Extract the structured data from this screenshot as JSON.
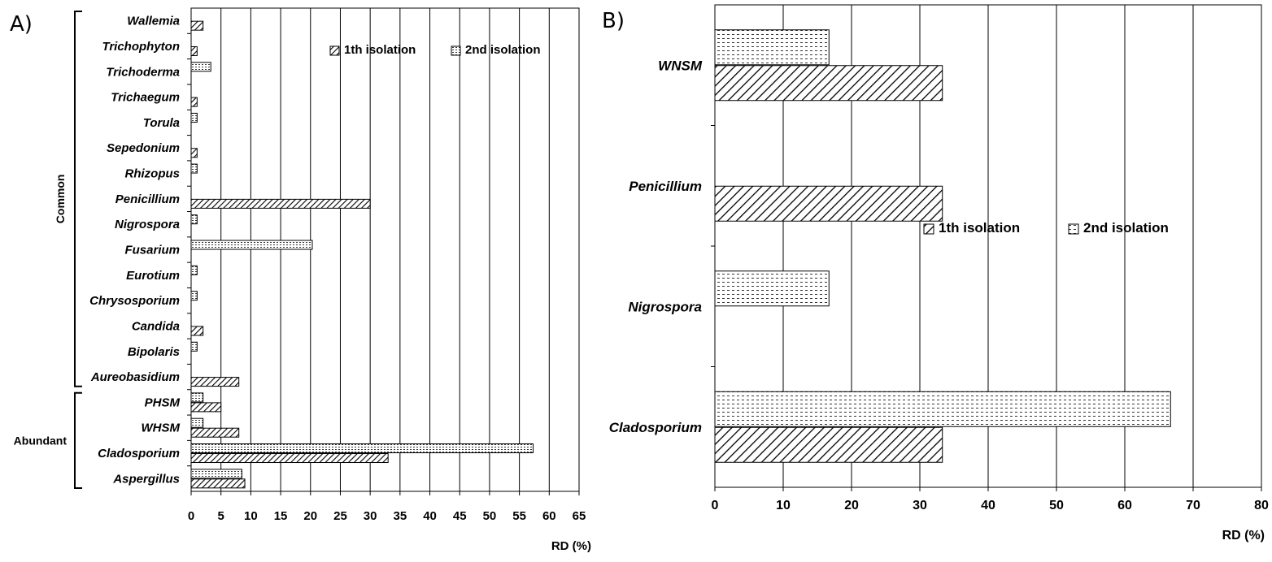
{
  "chart_data": [
    {
      "panel": "A)",
      "type": "bar",
      "orientation": "horizontal",
      "categories": [
        "Wallemia",
        "Trichophyton",
        "Trichoderma",
        "Trichaegum",
        "Torula",
        "Sepedonium",
        "Rhizopus",
        "Penicillium",
        "Nigrospora",
        "Fusarium",
        "Eurotium",
        "Chrysosporium",
        "Candida",
        "Bipolaris",
        "Aureobasidium",
        "PHSM",
        "WHSM",
        "Cladosporium",
        "Aspergillus"
      ],
      "series": [
        {
          "name": "1th isolation",
          "pattern": "diagonal",
          "values": [
            2,
            1,
            0,
            1,
            0,
            1,
            0,
            30,
            0,
            0,
            0,
            0,
            2,
            0,
            8,
            5,
            8,
            33,
            9
          ]
        },
        {
          "name": "2nd isolation",
          "pattern": "dotted",
          "values": [
            0,
            0,
            3.3,
            0,
            1,
            0,
            1,
            0,
            1,
            20.3,
            1,
            1,
            0,
            1,
            0,
            2,
            2,
            57.3,
            8.5
          ]
        }
      ],
      "xlabel": "RD (%)",
      "xlim": [
        0,
        65
      ],
      "xticks": [
        0,
        5,
        10,
        15,
        20,
        25,
        30,
        35,
        40,
        45,
        50,
        55,
        60,
        65
      ],
      "grid": "vertical",
      "legend_placement": "top-right",
      "groups": [
        {
          "label": "Common",
          "from": "Wallemia",
          "to": "Aureobasidium"
        },
        {
          "label": "Abundant",
          "from": "PHSM",
          "to": "Aspergillus"
        }
      ]
    },
    {
      "panel": "B)",
      "type": "bar",
      "orientation": "horizontal",
      "categories": [
        "WNSM",
        "Penicillium",
        "Nigrospora",
        "Cladosporium"
      ],
      "series": [
        {
          "name": "1th isolation",
          "pattern": "diagonal",
          "values": [
            33.3,
            33.3,
            0,
            33.3
          ]
        },
        {
          "name": "2nd isolation",
          "pattern": "dotted",
          "values": [
            16.7,
            0,
            16.7,
            66.7
          ]
        }
      ],
      "xlabel": "RD (%)",
      "xlim": [
        0,
        80
      ],
      "xticks": [
        0,
        10,
        20,
        30,
        40,
        50,
        60,
        70,
        80
      ],
      "grid": "vertical",
      "legend_placement": "center-right"
    }
  ]
}
